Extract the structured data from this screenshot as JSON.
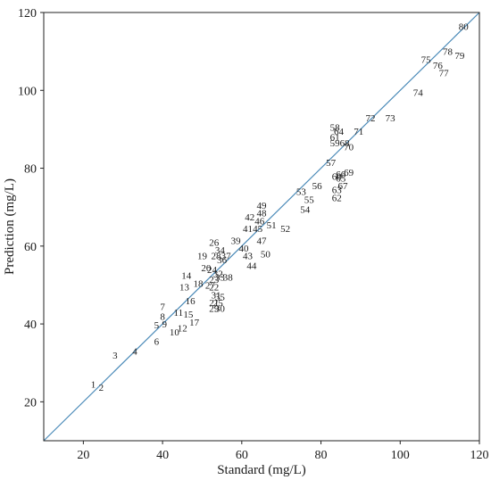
{
  "chart_data": {
    "type": "scatter",
    "xlabel": "Standard (mg/L)",
    "ylabel": "Prediction (mg/L)",
    "xlim": [
      10,
      120
    ],
    "ylim": [
      10,
      120
    ],
    "xticks": [
      20,
      40,
      60,
      80,
      100,
      120
    ],
    "yticks": [
      20,
      40,
      60,
      80,
      100,
      120
    ],
    "grid": false,
    "reference_line": {
      "from": [
        10,
        10
      ],
      "to": [
        120,
        120
      ],
      "color": "#4a8ab8"
    },
    "points": [
      {
        "label": "1",
        "x": 22.5,
        "y": 24.5
      },
      {
        "label": "2",
        "x": 24.5,
        "y": 23.8
      },
      {
        "label": "3",
        "x": 28.0,
        "y": 32.0
      },
      {
        "label": "4",
        "x": 33.0,
        "y": 33.0
      },
      {
        "label": "5",
        "x": 38.5,
        "y": 39.8
      },
      {
        "label": "6",
        "x": 38.5,
        "y": 35.5
      },
      {
        "label": "7",
        "x": 40.0,
        "y": 44.5
      },
      {
        "label": "8",
        "x": 40.0,
        "y": 42.0
      },
      {
        "label": "9",
        "x": 40.5,
        "y": 40.0
      },
      {
        "label": "10",
        "x": 43.0,
        "y": 38.0
      },
      {
        "label": "11",
        "x": 44.0,
        "y": 43.0
      },
      {
        "label": "12",
        "x": 45.0,
        "y": 39.0
      },
      {
        "label": "13",
        "x": 45.5,
        "y": 49.5
      },
      {
        "label": "14",
        "x": 46.0,
        "y": 52.5
      },
      {
        "label": "15",
        "x": 46.5,
        "y": 42.5
      },
      {
        "label": "16",
        "x": 47.0,
        "y": 46.0
      },
      {
        "label": "17",
        "x": 48.0,
        "y": 40.5
      },
      {
        "label": "18",
        "x": 49.0,
        "y": 50.5
      },
      {
        "label": "19",
        "x": 50.0,
        "y": 57.5
      },
      {
        "label": "20",
        "x": 51.0,
        "y": 54.5
      },
      {
        "label": "21",
        "x": 53.0,
        "y": 45.5
      },
      {
        "label": "22",
        "x": 53.0,
        "y": 49.5
      },
      {
        "label": "23",
        "x": 53.0,
        "y": 51.5
      },
      {
        "label": "24",
        "x": 52.5,
        "y": 54.0
      },
      {
        "label": "25",
        "x": 54.0,
        "y": 45.5
      },
      {
        "label": "26",
        "x": 53.0,
        "y": 61.0
      },
      {
        "label": "27",
        "x": 52.0,
        "y": 50.0
      },
      {
        "label": "28",
        "x": 53.5,
        "y": 57.5
      },
      {
        "label": "29",
        "x": 53.0,
        "y": 44.0
      },
      {
        "label": "30",
        "x": 54.5,
        "y": 44.0
      },
      {
        "label": "31",
        "x": 53.5,
        "y": 47.5
      },
      {
        "label": "32",
        "x": 54.0,
        "y": 53.0
      },
      {
        "label": "33",
        "x": 54.5,
        "y": 52.0
      },
      {
        "label": "34",
        "x": 54.5,
        "y": 59.0
      },
      {
        "label": "35",
        "x": 54.5,
        "y": 47.0
      },
      {
        "label": "36",
        "x": 55.0,
        "y": 56.5
      },
      {
        "label": "37",
        "x": 56.0,
        "y": 57.5
      },
      {
        "label": "38",
        "x": 56.5,
        "y": 52.0
      },
      {
        "label": "39",
        "x": 58.5,
        "y": 61.5
      },
      {
        "label": "40",
        "x": 60.5,
        "y": 59.5
      },
      {
        "label": "41",
        "x": 61.5,
        "y": 64.5
      },
      {
        "label": "42",
        "x": 62.0,
        "y": 67.5
      },
      {
        "label": "43",
        "x": 61.5,
        "y": 57.5
      },
      {
        "label": "44",
        "x": 62.5,
        "y": 55.0
      },
      {
        "label": "45",
        "x": 64.0,
        "y": 64.5
      },
      {
        "label": "46",
        "x": 64.5,
        "y": 66.5
      },
      {
        "label": "47",
        "x": 65.0,
        "y": 61.5
      },
      {
        "label": "48",
        "x": 65.0,
        "y": 68.5
      },
      {
        "label": "49",
        "x": 65.0,
        "y": 70.5
      },
      {
        "label": "50",
        "x": 66.0,
        "y": 58.0
      },
      {
        "label": "51",
        "x": 67.5,
        "y": 65.5
      },
      {
        "label": "52",
        "x": 71.0,
        "y": 64.5
      },
      {
        "label": "53",
        "x": 75.0,
        "y": 74.0
      },
      {
        "label": "54",
        "x": 76.0,
        "y": 69.5
      },
      {
        "label": "55",
        "x": 77.0,
        "y": 72.0
      },
      {
        "label": "56",
        "x": 79.0,
        "y": 75.5
      },
      {
        "label": "57",
        "x": 82.5,
        "y": 81.5
      },
      {
        "label": "58",
        "x": 83.5,
        "y": 90.5
      },
      {
        "label": "59",
        "x": 83.5,
        "y": 86.5
      },
      {
        "label": "60",
        "x": 84.0,
        "y": 78.0
      },
      {
        "label": "61",
        "x": 83.5,
        "y": 88.0
      },
      {
        "label": "62",
        "x": 84.0,
        "y": 72.5
      },
      {
        "label": "63",
        "x": 84.0,
        "y": 74.5
      },
      {
        "label": "64",
        "x": 84.5,
        "y": 89.5
      },
      {
        "label": "65",
        "x": 85.0,
        "y": 77.5
      },
      {
        "label": "66",
        "x": 85.0,
        "y": 78.5
      },
      {
        "label": "67",
        "x": 85.5,
        "y": 75.5
      },
      {
        "label": "68",
        "x": 86.0,
        "y": 86.5
      },
      {
        "label": "69",
        "x": 87.0,
        "y": 79.0
      },
      {
        "label": "70",
        "x": 87.0,
        "y": 85.5
      },
      {
        "label": "71",
        "x": 89.5,
        "y": 89.5
      },
      {
        "label": "72",
        "x": 92.5,
        "y": 93.0
      },
      {
        "label": "73",
        "x": 97.5,
        "y": 93.0
      },
      {
        "label": "74",
        "x": 104.5,
        "y": 99.5
      },
      {
        "label": "75",
        "x": 106.5,
        "y": 108.0
      },
      {
        "label": "76",
        "x": 109.5,
        "y": 106.5
      },
      {
        "label": "77",
        "x": 111.0,
        "y": 104.5
      },
      {
        "label": "78",
        "x": 112.0,
        "y": 110.0
      },
      {
        "label": "79",
        "x": 115.0,
        "y": 109.0
      },
      {
        "label": "80",
        "x": 116.0,
        "y": 116.5
      }
    ]
  }
}
